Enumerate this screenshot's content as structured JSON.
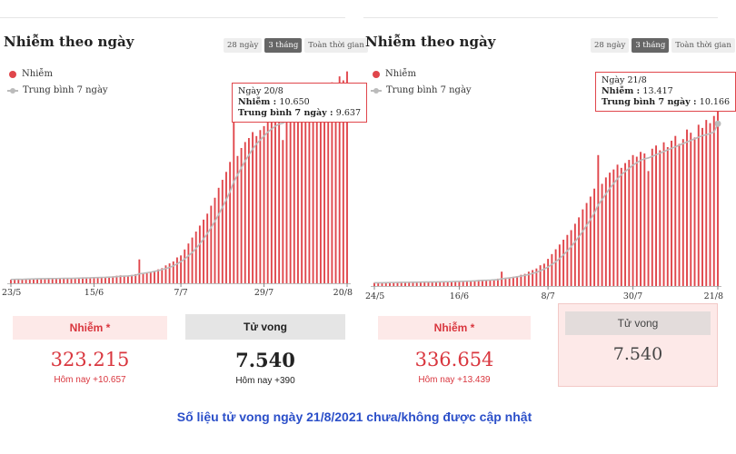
{
  "footnote": "Số liệu tử vong ngày 21/8/2021 chưa/không được cập nhật",
  "colors": {
    "bar": "#e0464b",
    "avg": "#bbbbbb",
    "accent": "#d9363e",
    "footnote": "#2b4fc9"
  },
  "chart_data": [
    {
      "type": "bar",
      "title": "Nhiễm theo ngày",
      "range_tabs": [
        "28 ngày",
        "3 tháng",
        "Toàn thời gian"
      ],
      "active_tab": "3 tháng",
      "legend": [
        "Nhiễm",
        "Trung bình 7 ngày"
      ],
      "legend_placement": "top-left",
      "grid": false,
      "x_tick_labels": [
        "23/5",
        "15/6",
        "7/7",
        "29/7",
        "20/8"
      ],
      "x_range": [
        "23/5",
        "20/8"
      ],
      "days": 90,
      "series": [
        {
          "name": "Nhiễm",
          "values": [
            180,
            200,
            210,
            190,
            230,
            220,
            240,
            250,
            230,
            210,
            260,
            240,
            250,
            270,
            260,
            250,
            240,
            260,
            280,
            300,
            290,
            270,
            300,
            310,
            320,
            300,
            330,
            350,
            380,
            400,
            360,
            380,
            420,
            460,
            1200,
            520,
            540,
            580,
            620,
            700,
            760,
            900,
            1000,
            1100,
            1300,
            1400,
            1700,
            2000,
            2300,
            2600,
            2900,
            3200,
            3500,
            3900,
            4300,
            4800,
            5200,
            5600,
            6100,
            8200,
            6400,
            6800,
            7100,
            7300,
            7600,
            7400,
            7700,
            7900,
            8200,
            8100,
            8400,
            8300,
            7200,
            8600,
            8800,
            8500,
            9000,
            8700,
            9100,
            9400,
            8900,
            9200,
            9800,
            9600,
            9300,
            10100,
            9900,
            10400,
            10200,
            10650
          ]
        },
        {
          "name": "Trung bình 7 ngày",
          "values": [
            190,
            200,
            205,
            200,
            210,
            215,
            220,
            225,
            230,
            230,
            235,
            240,
            240,
            245,
            250,
            250,
            250,
            255,
            260,
            265,
            270,
            275,
            285,
            290,
            295,
            300,
            310,
            320,
            335,
            350,
            360,
            370,
            385,
            400,
            480,
            500,
            530,
            560,
            600,
            640,
            690,
            740,
            800,
            880,
            980,
            1090,
            1220,
            1380,
            1550,
            1750,
            1980,
            2230,
            2500,
            2800,
            3120,
            3460,
            3820,
            4200,
            4600,
            5100,
            5450,
            5800,
            6150,
            6450,
            6750,
            7000,
            7200,
            7400,
            7600,
            7750,
            7900,
            8000,
            8050,
            8150,
            8250,
            8350,
            8450,
            8550,
            8650,
            8750,
            8850,
            8950,
            9050,
            9150,
            9250,
            9350,
            9450,
            9500,
            9580,
            9637
          ]
        }
      ],
      "ylim": [
        0,
        11500
      ],
      "tooltip": {
        "date": "Ngày 20/8",
        "cases_label": "Nhiễm",
        "cases_value": "10.650",
        "avg_label": "Trung bình 7 ngày",
        "avg_value": "9.637"
      },
      "stats": {
        "cases_label": "Nhiễm *",
        "cases_value": "323.215",
        "cases_today": "Hôm nay +10.657",
        "deaths_label": "Tử vong",
        "deaths_value": "7.540",
        "deaths_today": "Hôm nay +390"
      }
    },
    {
      "type": "bar",
      "title": "Nhiễm theo ngày",
      "range_tabs": [
        "28 ngày",
        "3 tháng",
        "Toàn thời gian"
      ],
      "active_tab": "3 tháng",
      "legend": [
        "Nhiễm",
        "Trung bình 7 ngày"
      ],
      "legend_placement": "top-left",
      "grid": false,
      "x_tick_labels": [
        "24/5",
        "16/6",
        "8/7",
        "30/7",
        "21/8"
      ],
      "x_range": [
        "24/5",
        "21/8"
      ],
      "days": 90,
      "series": [
        {
          "name": "Nhiễm",
          "values": [
            200,
            210,
            190,
            230,
            220,
            240,
            250,
            230,
            210,
            260,
            240,
            250,
            270,
            260,
            250,
            240,
            260,
            280,
            300,
            290,
            270,
            300,
            310,
            320,
            300,
            330,
            350,
            380,
            400,
            360,
            380,
            420,
            460,
            900,
            520,
            540,
            580,
            620,
            700,
            760,
            900,
            1000,
            1100,
            1300,
            1400,
            1700,
            2000,
            2300,
            2600,
            2900,
            3200,
            3500,
            3900,
            4300,
            4800,
            5200,
            5600,
            6100,
            8200,
            6400,
            6800,
            7100,
            7300,
            7600,
            7400,
            7700,
            7900,
            8200,
            8100,
            8400,
            8300,
            7200,
            8600,
            8800,
            8500,
            9000,
            8700,
            9100,
            9400,
            8900,
            9200,
            9800,
            9600,
            9300,
            10100,
            9900,
            10400,
            10200,
            10650,
            13417
          ]
        },
        {
          "name": "Trung bình 7 ngày",
          "values": [
            200,
            205,
            200,
            210,
            215,
            220,
            225,
            230,
            230,
            235,
            240,
            240,
            245,
            250,
            250,
            250,
            255,
            260,
            265,
            270,
            275,
            285,
            290,
            295,
            300,
            310,
            320,
            335,
            350,
            360,
            370,
            385,
            400,
            450,
            480,
            510,
            540,
            580,
            620,
            670,
            720,
            790,
            860,
            950,
            1060,
            1190,
            1350,
            1520,
            1720,
            1950,
            2200,
            2470,
            2770,
            3090,
            3430,
            3790,
            4170,
            4570,
            5070,
            5420,
            5770,
            6120,
            6420,
            6720,
            6970,
            7170,
            7370,
            7570,
            7720,
            7870,
            7970,
            8020,
            8120,
            8220,
            8320,
            8420,
            8520,
            8620,
            8720,
            8820,
            8920,
            9020,
            9120,
            9220,
            9320,
            9420,
            9470,
            9550,
            9640,
            10166
          ]
        }
      ],
      "ylim": [
        0,
        14500
      ],
      "tooltip": {
        "date": "Ngày 21/8",
        "cases_label": "Nhiễm",
        "cases_value": "13.417",
        "avg_label": "Trung bình 7 ngày",
        "avg_value": "10.166"
      },
      "stats": {
        "cases_label": "Nhiễm *",
        "cases_value": "336.654",
        "cases_today": "Hôm nay +13.439",
        "deaths_label": "Tử vong",
        "deaths_value": "7.540"
      }
    }
  ]
}
